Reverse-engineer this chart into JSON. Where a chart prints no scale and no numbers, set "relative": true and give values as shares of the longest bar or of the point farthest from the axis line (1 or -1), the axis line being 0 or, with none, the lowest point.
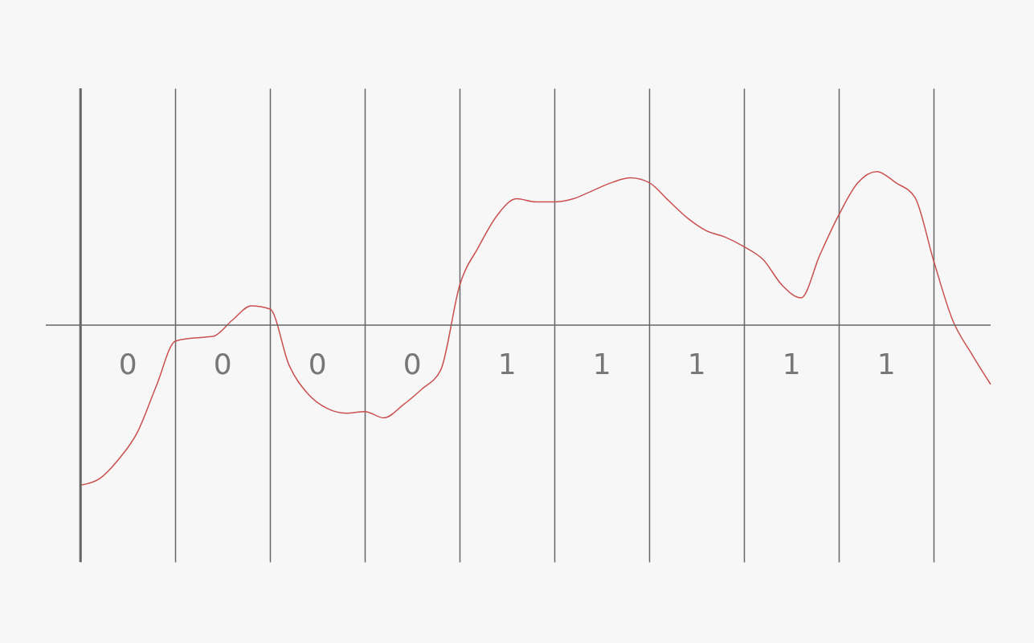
{
  "chart_data": {
    "type": "line",
    "relative": true,
    "grid": "x",
    "categories": [
      null,
      null,
      null,
      null,
      null,
      null,
      null,
      null,
      null,
      null,
      null,
      null,
      null,
      null,
      null,
      null,
      null,
      null,
      null,
      null,
      null,
      null,
      null,
      null,
      null,
      null,
      null,
      null,
      null,
      null,
      null,
      null,
      null,
      null,
      null,
      null,
      null,
      null,
      null,
      null,
      null,
      null,
      null,
      null,
      null,
      null,
      null,
      null,
      null
    ],
    "series": [
      {
        "color": "#c9504f",
        "values": [
          -1,
          -0.96,
          -0.84,
          -0.67,
          -0.38,
          -0.1,
          -0.08,
          -0.07,
          0.03,
          0.12,
          0.1,
          -0.25,
          -0.43,
          -0.52,
          -0.55,
          -0.54,
          -0.58,
          -0.5,
          -0.4,
          -0.28,
          0.25,
          0.49,
          0.69,
          0.79,
          0.77,
          0.77,
          0.79,
          0.84,
          0.89,
          0.92,
          0.89,
          0.78,
          0.67,
          0.59,
          0.55,
          0.49,
          0.41,
          0.25,
          0.17,
          0.44,
          0.69,
          0.89,
          0.96,
          0.89,
          0.8,
          0.4,
          0.03,
          -0.18,
          -0.37
        ]
      }
    ],
    "annotations": [
      "0",
      "0",
      "0",
      "0",
      "1",
      "1",
      "1",
      "1",
      "1"
    ]
  }
}
